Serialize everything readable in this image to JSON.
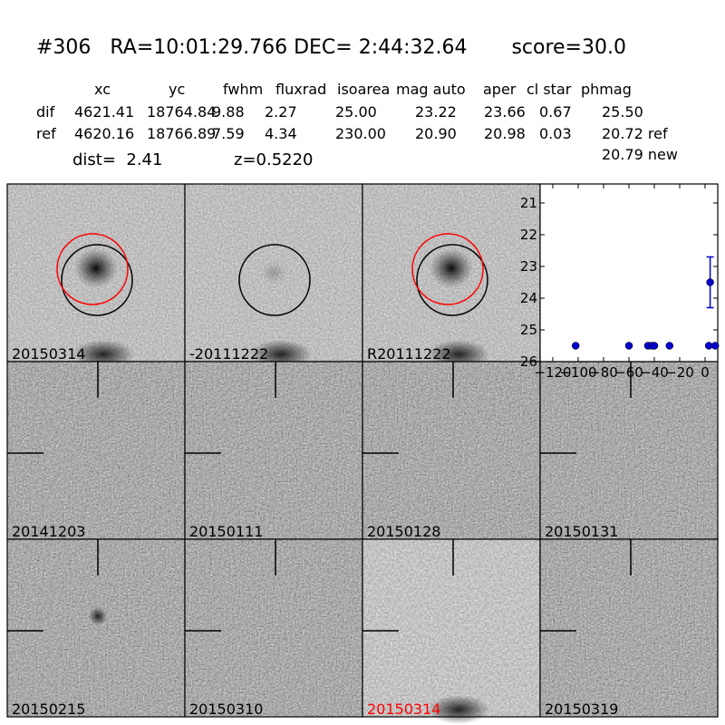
{
  "header": {
    "title": "#306   RA=10:01:29.766 DEC= 2:44:32.64       score=30.0",
    "columns": [
      "xc",
      "yc",
      "fwhm",
      "fluxrad",
      "isoarea",
      "mag auto",
      "aper",
      "cl star",
      "phmag"
    ],
    "rows": [
      {
        "label": "dif",
        "values": [
          "4621.41",
          "18764.84",
          "9.88",
          "2.27",
          "25.00",
          "23.22",
          "23.66",
          "0.67",
          "25.50"
        ]
      },
      {
        "label": "ref",
        "values": [
          "4620.16",
          "18766.89",
          "7.59",
          "4.34",
          "230.00",
          "20.90",
          "20.98",
          "0.03",
          "20.72 ref"
        ]
      }
    ],
    "new_mag": "20.79 new",
    "dist_text": "dist=  2.41",
    "z_text": "z=0.5220"
  },
  "panels": [
    {
      "label": "20150314",
      "label_color": "#000000",
      "style": "light",
      "circles": "both"
    },
    {
      "label": "-20111222",
      "label_color": "#000000",
      "style": "diff",
      "circles": "black"
    },
    {
      "label": "R20111222",
      "label_color": "#000000",
      "style": "light",
      "circles": "both"
    },
    {
      "label": "20141203",
      "label_color": "#000000",
      "style": "noisy",
      "circles": "none"
    },
    {
      "label": "20150111",
      "label_color": "#000000",
      "style": "noisy",
      "circles": "none"
    },
    {
      "label": "20150128",
      "label_color": "#000000",
      "style": "noisy",
      "circles": "none"
    },
    {
      "label": "20150131",
      "label_color": "#000000",
      "style": "noisy",
      "circles": "none"
    },
    {
      "label": "20150215",
      "label_color": "#000000",
      "style": "noisy",
      "circles": "none"
    },
    {
      "label": "20150310",
      "label_color": "#000000",
      "style": "noisy",
      "circles": "none"
    },
    {
      "label": "20150314",
      "label_color": "#ff0000",
      "style": "pale",
      "circles": "none"
    },
    {
      "label": "20150319",
      "label_color": "#000000",
      "style": "noisy",
      "circles": "none"
    }
  ],
  "chart_data": {
    "type": "scatter",
    "x": [
      -102,
      -60,
      -45,
      -42,
      -40,
      -28,
      -2,
      3,
      8
    ],
    "y": [
      25.5,
      25.5,
      25.5,
      25.5,
      25.5,
      25.5,
      23.5,
      25.5,
      25.5
    ],
    "error_point": {
      "x": 4,
      "y": 23.5,
      "lower": 22.7,
      "upper": 24.3
    },
    "xlim": [
      -130,
      10
    ],
    "ylim": [
      26,
      20.4
    ],
    "yticks": [
      21,
      22,
      23,
      24,
      25,
      26
    ],
    "xticks": [
      -120,
      -100,
      -80,
      -60,
      -40,
      -20,
      0
    ],
    "marker_color": "#0000cc"
  }
}
